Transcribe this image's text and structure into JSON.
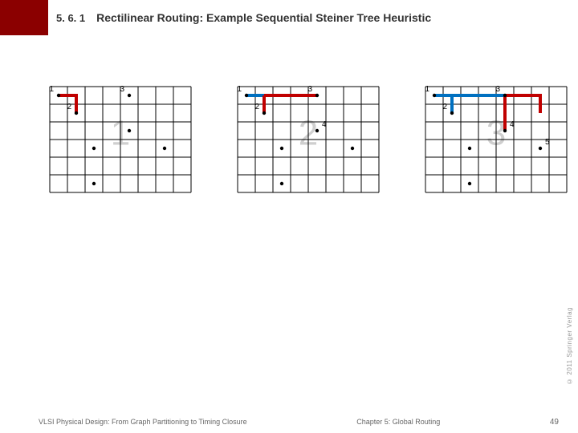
{
  "header": {
    "section": "5. 6. 1",
    "title": "Rectilinear Routing: Example Sequential Steiner Tree Heuristic"
  },
  "grid_common": {
    "cols": 8,
    "rows": 6,
    "cell": 22,
    "line_color": "#000000",
    "line_width": 1,
    "bg": "#ffffff",
    "point_radius": 2.2,
    "point_color": "#000000",
    "label_fontsize": 10,
    "label_color": "#000000",
    "big_fontsize": 44,
    "big_color": "#cfcfcf",
    "wire_width": 4,
    "wire_blue": "#0070c0",
    "wire_red": "#c00000"
  },
  "grids": [
    {
      "big_label": "1",
      "points": [
        {
          "c": 0,
          "r": 0,
          "label": "1",
          "lpos": "tl"
        },
        {
          "c": 1,
          "r": 1,
          "label": "2",
          "lpos": "tl"
        },
        {
          "c": 4,
          "r": 0,
          "label": "3",
          "lpos": "tl"
        },
        {
          "c": 4,
          "r": 2
        },
        {
          "c": 2,
          "r": 3
        },
        {
          "c": 6,
          "r": 3
        },
        {
          "c": 2,
          "r": 5
        }
      ],
      "wires": [
        {
          "color": "red",
          "pts": [
            [
              0,
              0
            ],
            [
              1,
              0
            ],
            [
              1,
              1
            ]
          ]
        }
      ]
    },
    {
      "big_label": "2",
      "points": [
        {
          "c": 0,
          "r": 0,
          "label": "1",
          "lpos": "tl"
        },
        {
          "c": 1,
          "r": 1,
          "label": "2",
          "lpos": "tl"
        },
        {
          "c": 4,
          "r": 0,
          "label": "3",
          "lpos": "tl"
        },
        {
          "c": 4,
          "r": 2,
          "label": "4",
          "lpos": "tr"
        },
        {
          "c": 2,
          "r": 3
        },
        {
          "c": 6,
          "r": 3
        },
        {
          "c": 2,
          "r": 5
        }
      ],
      "wires": [
        {
          "color": "blue",
          "pts": [
            [
              0,
              0
            ],
            [
              1,
              0
            ],
            [
              1,
              1
            ]
          ]
        },
        {
          "color": "red",
          "pts": [
            [
              4,
              0
            ],
            [
              1,
              0
            ]
          ]
        },
        {
          "color": "red",
          "pts": [
            [
              1,
              0
            ],
            [
              1,
              1
            ]
          ]
        }
      ]
    },
    {
      "big_label": "3",
      "points": [
        {
          "c": 0,
          "r": 0,
          "label": "1",
          "lpos": "tl"
        },
        {
          "c": 1,
          "r": 1,
          "label": "2",
          "lpos": "tl"
        },
        {
          "c": 4,
          "r": 0,
          "label": "3",
          "lpos": "tl"
        },
        {
          "c": 4,
          "r": 2,
          "label": "4",
          "lpos": "tr"
        },
        {
          "c": 6,
          "r": 3,
          "label": "5",
          "lpos": "tr"
        },
        {
          "c": 2,
          "r": 3
        },
        {
          "c": 2,
          "r": 5
        }
      ],
      "wires": [
        {
          "color": "blue",
          "pts": [
            [
              0,
              0
            ],
            [
              1,
              0
            ],
            [
              1,
              1
            ]
          ]
        },
        {
          "color": "blue",
          "pts": [
            [
              1,
              0
            ],
            [
              4,
              0
            ]
          ]
        },
        {
          "color": "red",
          "pts": [
            [
              4,
              0
            ],
            [
              4,
              2
            ]
          ]
        },
        {
          "color": "red",
          "pts": [
            [
              4,
              0
            ],
            [
              6,
              0
            ],
            [
              6,
              1
            ]
          ]
        }
      ]
    }
  ],
  "footer": {
    "left": "VLSI Physical Design: From Graph Partitioning to Timing Closure",
    "right": "Chapter 5: Global Routing",
    "page": "49"
  },
  "copyright": "© 2011 Springer Verlag"
}
